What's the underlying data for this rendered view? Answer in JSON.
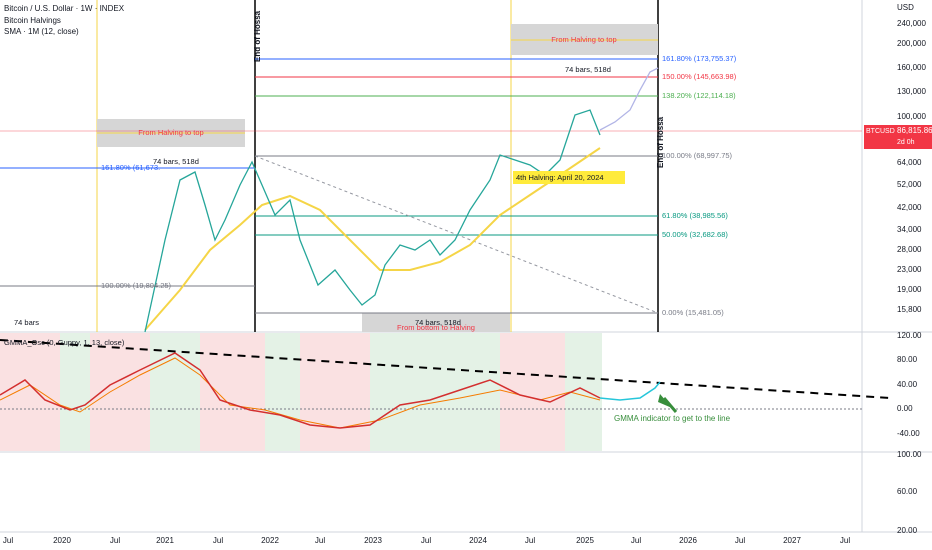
{
  "header": {
    "symbol": "Bitcoin / U.S. Dollar · 1W · INDEX",
    "indicator1": "Bitcoin Halvings",
    "indicator2": "SMA · 1M (12, close)",
    "currency": "USD"
  },
  "price_axis": [
    "240,000",
    "200,000",
    "160,000",
    "130,000",
    "100,000",
    "64,000",
    "52,000",
    "42,000",
    "34,000",
    "28,000",
    "23,000",
    "19,000",
    "15,800"
  ],
  "price_tag": {
    "symbol": "BTCUSD",
    "price": "86,815.86",
    "countdown": "2d 0h"
  },
  "time_axis": [
    "Jul",
    "2020",
    "Jul",
    "2021",
    "Jul",
    "2022",
    "Jul",
    "2023",
    "Jul",
    "2024",
    "Jul",
    "2025",
    "Jul",
    "2026",
    "Jul",
    "2027",
    "Jul"
  ],
  "annotations": {
    "halving_top_1": "From Halving to top",
    "halving_top_2": "From Halving to top",
    "bottom_halving": "From bottom to Halving",
    "bars_1": "74 bars, 518d",
    "bars_2": "74 bars, 518d",
    "bars_3": "74 bars, 518d",
    "bars_4": "74 bars",
    "end_1": "End of Hossa",
    "end_2": "End of Hossa",
    "halving_4": "4th Halving: April 20, 2024",
    "gmma_note": "GMMA indicator to get to the line"
  },
  "fib_levels": [
    "161.80% (173,755.37)",
    "150.00% (145,663.98)",
    "138.20% (122,114.18)",
    "100.00% (68,997.75)",
    "61.80% (38,985.56)",
    "50.00% (32,682.68)",
    "0.00% (15,481.05)"
  ],
  "fib_left": [
    "161.80% (61,673.",
    "100.00% (19,804.25)"
  ],
  "oscillator": {
    "title": "GMMA_Osc (0, Guppy, 1, 13, close)",
    "axis": [
      "120.00",
      "80.00",
      "40.00",
      "0.00",
      "-40.00"
    ]
  },
  "pane3_axis": [
    "100.00",
    "60.00",
    "20.00"
  ]
}
